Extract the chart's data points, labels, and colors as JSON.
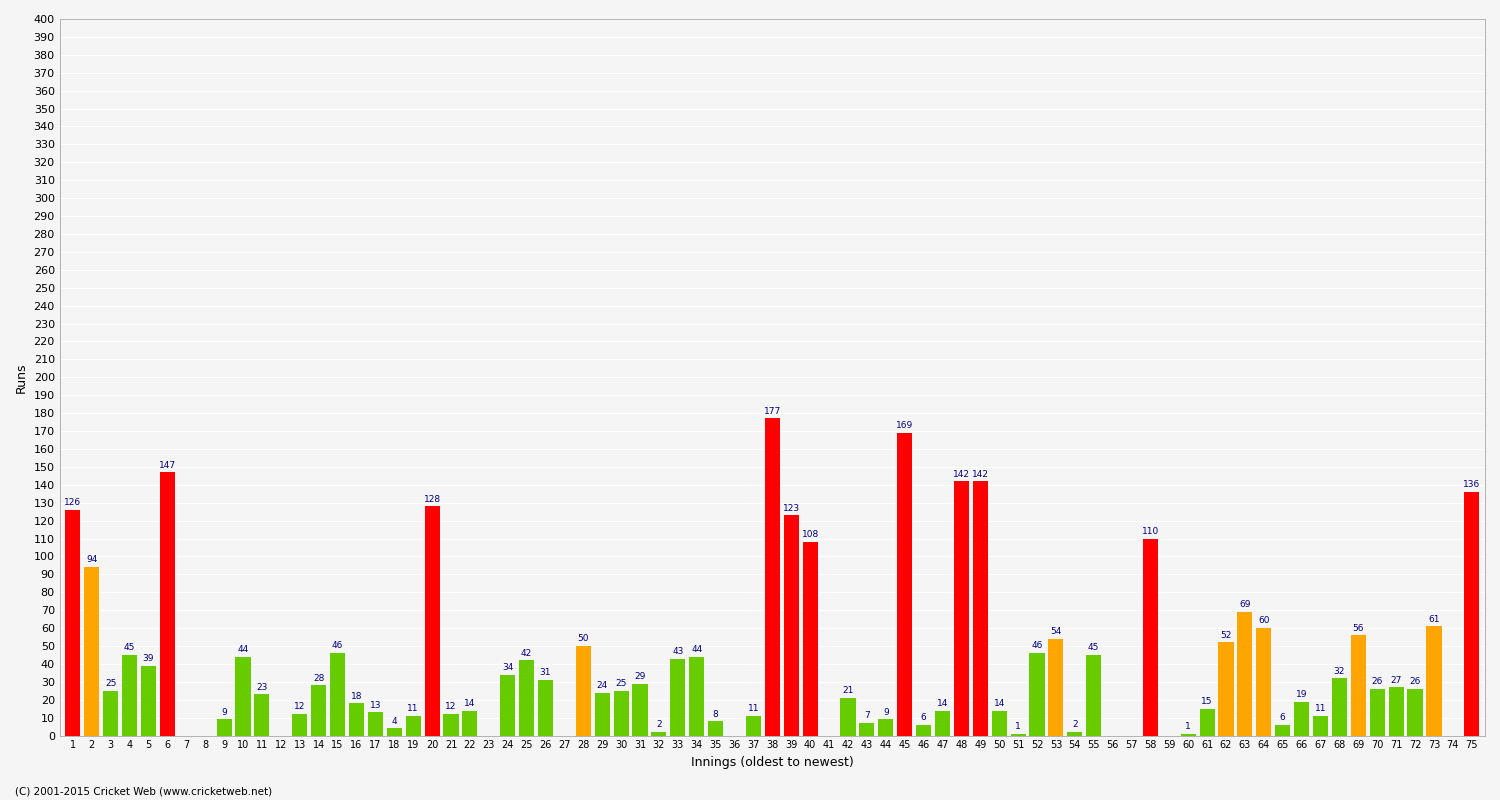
{
  "xlabel": "Innings (oldest to newest)",
  "ylabel": "Runs",
  "background_color": "#f5f5f5",
  "grid_color": "#ffffff",
  "innings_data": [
    [
      "1",
      126,
      "red"
    ],
    [
      "2",
      94,
      "orange"
    ],
    [
      "3",
      25,
      "green"
    ],
    [
      "4",
      45,
      "green"
    ],
    [
      "5",
      39,
      "green"
    ],
    [
      "6",
      147,
      "red"
    ],
    [
      "7",
      0,
      "green"
    ],
    [
      "8",
      0,
      "green"
    ],
    [
      "9",
      9,
      "green"
    ],
    [
      "10",
      44,
      "green"
    ],
    [
      "11",
      23,
      "green"
    ],
    [
      "12",
      0,
      "green"
    ],
    [
      "13",
      12,
      "green"
    ],
    [
      "14",
      28,
      "green"
    ],
    [
      "15",
      46,
      "green"
    ],
    [
      "16",
      18,
      "green"
    ],
    [
      "17",
      13,
      "green"
    ],
    [
      "18",
      4,
      "green"
    ],
    [
      "19",
      11,
      "green"
    ],
    [
      "20",
      128,
      "red"
    ],
    [
      "21",
      12,
      "green"
    ],
    [
      "22",
      14,
      "green"
    ],
    [
      "23",
      0,
      "green"
    ],
    [
      "24",
      34,
      "green"
    ],
    [
      "25",
      42,
      "green"
    ],
    [
      "26",
      31,
      "green"
    ],
    [
      "27",
      0,
      "green"
    ],
    [
      "28",
      50,
      "orange"
    ],
    [
      "29",
      24,
      "green"
    ],
    [
      "30",
      25,
      "green"
    ],
    [
      "31",
      29,
      "green"
    ],
    [
      "32",
      2,
      "green"
    ],
    [
      "33",
      43,
      "green"
    ],
    [
      "34",
      44,
      "green"
    ],
    [
      "35",
      8,
      "green"
    ],
    [
      "36",
      0,
      "green"
    ],
    [
      "37",
      11,
      "green"
    ],
    [
      "38",
      177,
      "red"
    ],
    [
      "39",
      123,
      "red"
    ],
    [
      "40",
      108,
      "red"
    ],
    [
      "41",
      0,
      "green"
    ],
    [
      "42",
      21,
      "green"
    ],
    [
      "43",
      7,
      "green"
    ],
    [
      "44",
      9,
      "green"
    ],
    [
      "45",
      169,
      "red"
    ],
    [
      "46",
      6,
      "green"
    ],
    [
      "47",
      14,
      "green"
    ],
    [
      "48",
      142,
      "red"
    ],
    [
      "49",
      142,
      "red"
    ],
    [
      "50",
      14,
      "green"
    ],
    [
      "51",
      1,
      "green"
    ],
    [
      "52",
      46,
      "green"
    ],
    [
      "53",
      54,
      "orange"
    ],
    [
      "54",
      2,
      "green"
    ],
    [
      "55",
      45,
      "green"
    ],
    [
      "56",
      0,
      "green"
    ],
    [
      "57",
      0,
      "green"
    ],
    [
      "58",
      110,
      "red"
    ],
    [
      "59",
      0,
      "green"
    ],
    [
      "60",
      1,
      "green"
    ],
    [
      "61",
      15,
      "green"
    ],
    [
      "62",
      52,
      "orange"
    ],
    [
      "63",
      69,
      "orange"
    ],
    [
      "64",
      60,
      "orange"
    ],
    [
      "65",
      6,
      "green"
    ],
    [
      "66",
      19,
      "green"
    ],
    [
      "67",
      11,
      "green"
    ],
    [
      "68",
      32,
      "green"
    ],
    [
      "69",
      56,
      "orange"
    ],
    [
      "70",
      26,
      "green"
    ],
    [
      "71",
      27,
      "green"
    ],
    [
      "72",
      26,
      "green"
    ],
    [
      "73",
      61,
      "orange"
    ],
    [
      "74",
      0,
      "green"
    ],
    [
      "75",
      136,
      "red"
    ]
  ],
  "color_map": {
    "red": "#ff0000",
    "orange": "#ffa500",
    "green": "#66cc00"
  },
  "ylim": [
    0,
    400
  ],
  "ytick_step": 10,
  "copyright": "(C) 2001-2015 Cricket Web (www.cricketweb.net)"
}
